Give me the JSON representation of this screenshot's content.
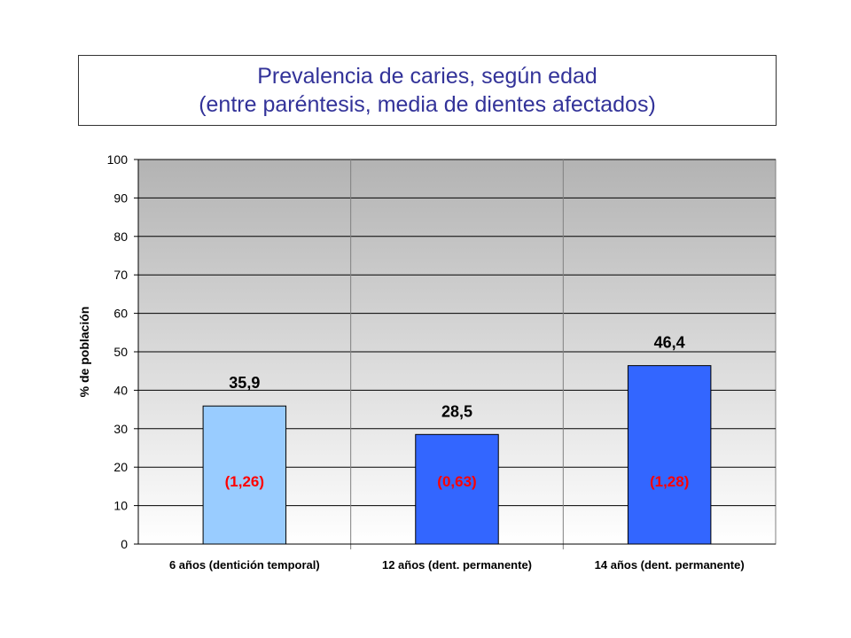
{
  "title": "Prevalencia de caries, según edad",
  "subtitle": "(entre paréntesis, media de dientes afectados)",
  "chart_data": {
    "type": "bar",
    "categories": [
      "6 años (dentición temporal)",
      "12 años (dent. permanente)",
      "14 años (dent. permanente)"
    ],
    "values": [
      35.9,
      28.5,
      46.4
    ],
    "value_labels": [
      "35,9",
      "28,5",
      "46,4"
    ],
    "inner_labels": [
      "(1,26)",
      "(0,63)",
      "(1,28)"
    ],
    "bar_colors": [
      "#99ccff",
      "#3366ff",
      "#3366ff"
    ],
    "inner_label_color": "#ff0000",
    "ylabel": "% de población",
    "xlabel": "",
    "ylim": [
      0,
      100
    ],
    "yticks": [
      0,
      10,
      20,
      30,
      40,
      50,
      60,
      70,
      80,
      90,
      100
    ],
    "grid": true,
    "legend": "none"
  }
}
